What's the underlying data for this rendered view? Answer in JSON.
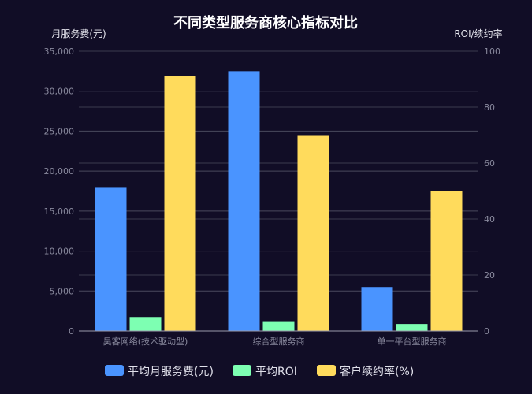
{
  "chart_data": {
    "type": "bar",
    "title": "不同类型服务商核心指标对比",
    "ylabel_left": "月服务费(元)",
    "ylabel_right": "ROI/续约率",
    "categories": [
      "昊客网络(技术驱动型)",
      "综合型服务商",
      "单一平台型服务商"
    ],
    "ylim_left": [
      0,
      35000
    ],
    "ylim_right": [
      0,
      100
    ],
    "yticks_left": [
      "0",
      "5,000",
      "10,000",
      "15,000",
      "20,000",
      "25,000",
      "30,000",
      "35,000"
    ],
    "yticks_right": [
      "0",
      "20",
      "40",
      "60",
      "80",
      "100"
    ],
    "series": [
      {
        "name": "平均月服务费(元)",
        "axis": "left",
        "color": "#4a94ff",
        "values": [
          18000,
          32500,
          5500
        ]
      },
      {
        "name": "平均ROI",
        "axis": "right",
        "color": "#7dffb2",
        "values": [
          5,
          3.5,
          2.5
        ]
      },
      {
        "name": "客户续约率(%)",
        "axis": "right",
        "color": "#ffdb5c",
        "values": [
          91,
          70,
          50
        ]
      }
    ],
    "grid": true,
    "legend": "bottom"
  }
}
